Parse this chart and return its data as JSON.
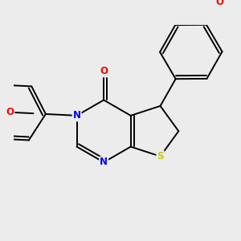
{
  "bg_color": "#ececec",
  "bond_color": "#000000",
  "bond_width": 1.4,
  "dbo": 0.05,
  "atom_colors": {
    "N": "#0000ff",
    "S": "#cccc00",
    "O": "#ff0000",
    "C": "#000000"
  },
  "font_size": 8.5,
  "fig_size": [
    3.0,
    3.0
  ],
  "dpi": 100,
  "xlim": [
    -1.6,
    1.8
  ],
  "ylim": [
    -1.7,
    1.6
  ]
}
